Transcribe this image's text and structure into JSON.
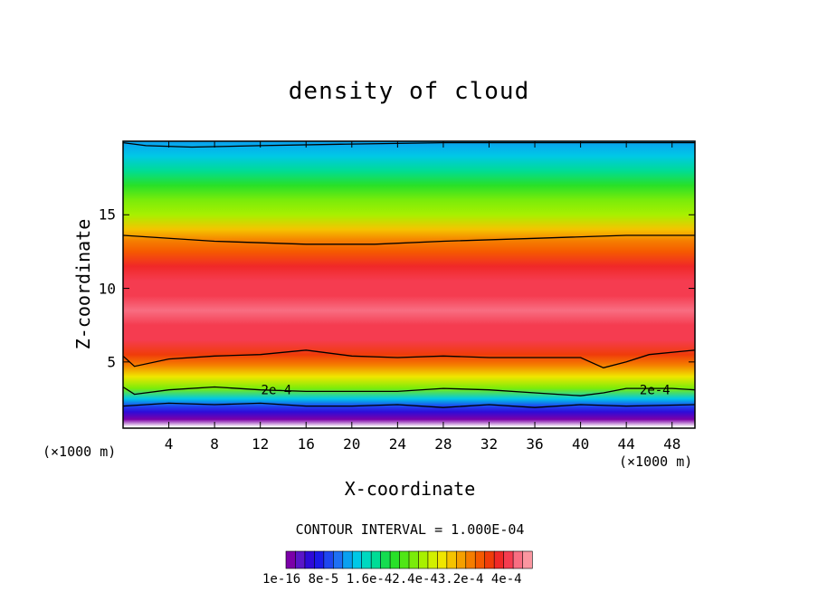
{
  "chart_data": {
    "type": "heatmap",
    "title": "density of cloud",
    "xlabel": "X-coordinate",
    "ylabel": "Z-coordinate",
    "x_multiplier_label": "(×1000 m)",
    "xlim": [
      0,
      50
    ],
    "ylim": [
      0.5,
      20
    ],
    "x_ticks": [
      4,
      8,
      12,
      16,
      20,
      24,
      28,
      32,
      36,
      40,
      44,
      48
    ],
    "y_ticks": [
      5,
      10,
      15
    ],
    "contour_interval_text": "CONTOUR INTERVAL = 1.000E-04",
    "colorbar_labels_text": "1e-16 8e-5 1.6e-42.4e-43.2e-4 4e-4",
    "colorbar_colors": [
      "#7b00a8",
      "#5a16c8",
      "#2e0bd8",
      "#1a1ae8",
      "#1e46f0",
      "#1e70f4",
      "#0aa0f0",
      "#00c8e6",
      "#00d8c0",
      "#00dc96",
      "#14dc50",
      "#28e028",
      "#50e616",
      "#7aec0a",
      "#a8f000",
      "#d2f000",
      "#f0e600",
      "#f5c300",
      "#f5a000",
      "#f57d00",
      "#f55a00",
      "#f03c0a",
      "#f02828",
      "#f53c50",
      "#f86e82",
      "#fa96a0"
    ],
    "colormap": "rainbow, 1e-16 (purple) to 4e-4 (pink)",
    "profile": [
      {
        "z": 0.6,
        "value": 0.0
      },
      {
        "z": 1.1,
        "value": 1.2e-05
      },
      {
        "z": 1.6,
        "value": 4e-05
      },
      {
        "z": 2.0,
        "value": 7.5e-05
      },
      {
        "z": 2.5,
        "value": 0.00012
      },
      {
        "z": 3.2,
        "value": 0.0002
      },
      {
        "z": 4.0,
        "value": 0.00026
      },
      {
        "z": 4.8,
        "value": 0.0003
      },
      {
        "z": 5.5,
        "value": 0.00033
      },
      {
        "z": 6.5,
        "value": 0.000355
      },
      {
        "z": 7.5,
        "value": 0.000365
      },
      {
        "z": 8.5,
        "value": 0.00037
      },
      {
        "z": 9.5,
        "value": 0.000365
      },
      {
        "z": 10.5,
        "value": 0.000355
      },
      {
        "z": 11.5,
        "value": 0.00034
      },
      {
        "z": 12.5,
        "value": 0.00032
      },
      {
        "z": 13.2,
        "value": 0.0003
      },
      {
        "z": 14.0,
        "value": 0.00027
      },
      {
        "z": 15.0,
        "value": 0.00023
      },
      {
        "z": 16.0,
        "value": 0.0002
      },
      {
        "z": 17.0,
        "value": 0.00017
      },
      {
        "z": 18.0,
        "value": 0.00014
      },
      {
        "z": 19.0,
        "value": 0.00012
      },
      {
        "z": 20.0,
        "value": 0.0001
      }
    ],
    "contour_lines": [
      {
        "level": 0.0003,
        "points": [
          [
            0,
            13.6
          ],
          [
            8,
            13.2
          ],
          [
            16,
            13.0
          ],
          [
            22,
            13.0
          ],
          [
            28,
            13.2
          ],
          [
            36,
            13.4
          ],
          [
            44,
            13.6
          ],
          [
            50,
            13.6
          ]
        ]
      },
      {
        "level": 0.0003,
        "points": [
          [
            0,
            5.4
          ],
          [
            1,
            4.7
          ],
          [
            4,
            5.2
          ],
          [
            8,
            5.4
          ],
          [
            12,
            5.5
          ],
          [
            16,
            5.8
          ],
          [
            20,
            5.4
          ],
          [
            24,
            5.3
          ],
          [
            28,
            5.4
          ],
          [
            32,
            5.3
          ],
          [
            36,
            5.3
          ],
          [
            40,
            5.3
          ],
          [
            42,
            4.6
          ],
          [
            44,
            5.0
          ],
          [
            46,
            5.5
          ],
          [
            50,
            5.8
          ]
        ]
      },
      {
        "level": 0.0002,
        "points": [
          [
            0,
            3.3
          ],
          [
            1,
            2.8
          ],
          [
            4,
            3.1
          ],
          [
            8,
            3.3
          ],
          [
            12,
            3.1
          ],
          [
            16,
            3.0
          ],
          [
            20,
            3.0
          ],
          [
            24,
            3.0
          ],
          [
            28,
            3.2
          ],
          [
            32,
            3.1
          ],
          [
            36,
            2.9
          ],
          [
            40,
            2.7
          ],
          [
            42,
            2.9
          ],
          [
            44,
            3.2
          ],
          [
            48,
            3.2
          ],
          [
            50,
            3.1
          ]
        ]
      },
      {
        "level": 0.0001,
        "points": [
          [
            0,
            19.9
          ],
          [
            2,
            19.7
          ],
          [
            6,
            19.6
          ],
          [
            12,
            19.7
          ],
          [
            19,
            19.8
          ],
          [
            28,
            19.9
          ],
          [
            32,
            19.9
          ],
          [
            50,
            19.9
          ]
        ]
      },
      {
        "level": 0.0001,
        "points": [
          [
            0,
            2.0
          ],
          [
            4,
            2.2
          ],
          [
            8,
            2.1
          ],
          [
            12,
            2.2
          ],
          [
            16,
            2.0
          ],
          [
            20,
            2.0
          ],
          [
            24,
            2.1
          ],
          [
            28,
            1.9
          ],
          [
            32,
            2.1
          ],
          [
            36,
            1.9
          ],
          [
            40,
            2.1
          ],
          [
            44,
            2.0
          ],
          [
            50,
            2.1
          ]
        ]
      }
    ],
    "contour_labels": [
      {
        "text": "2e-4",
        "x": 13.4,
        "z": 3.1
      },
      {
        "text": "2e-4",
        "x": 46.5,
        "z": 3.1
      }
    ]
  }
}
